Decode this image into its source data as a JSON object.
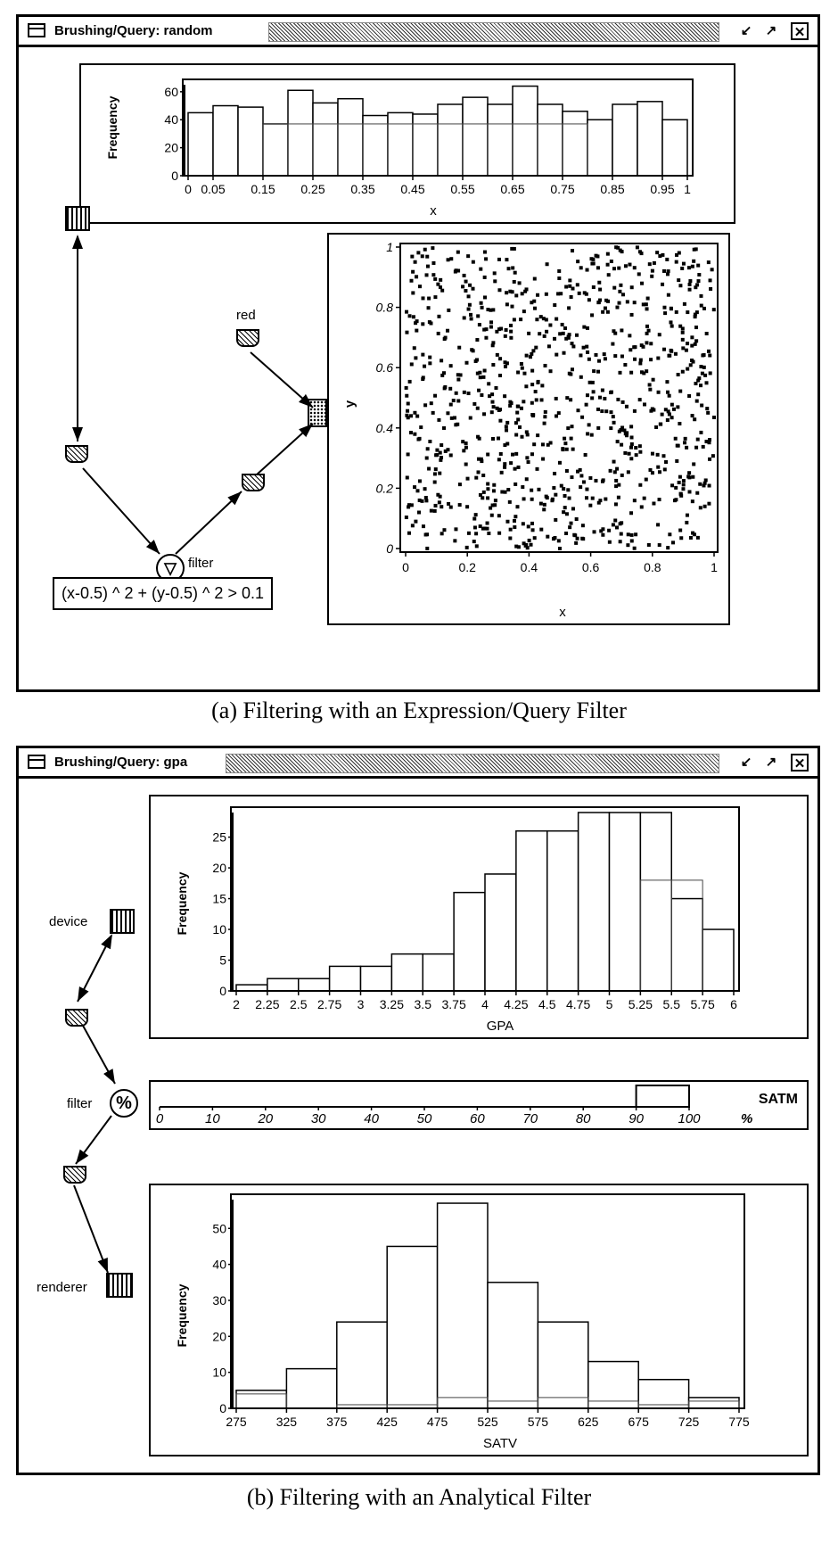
{
  "window_a": {
    "title": "Brushing/Query:  random",
    "controls": [
      "minimize-icon",
      "maximize-icon",
      "close-icon"
    ],
    "histogram": {
      "ylabel": "Frequency",
      "xlabel": "x",
      "yticks": [
        "0",
        "20",
        "40",
        "60"
      ],
      "xticks": [
        "0",
        "0.05",
        "0.15",
        "0.25",
        "0.35",
        "0.45",
        "0.55",
        "0.65",
        "0.75",
        "0.85",
        "0.95",
        "1"
      ]
    },
    "scatter": {
      "xlabel": "x",
      "ylabel": "y",
      "xticks": [
        "0",
        "0.2",
        "0.4",
        "0.6",
        "0.8",
        "1"
      ],
      "yticks": [
        "0",
        "0.2",
        "0.4",
        "0.6",
        "0.8",
        "1"
      ]
    },
    "nodes": {
      "red_label": "red",
      "filter_label": "filter"
    },
    "expression": "(x-0.5) ^ 2 + (y-0.5) ^ 2 > 0.1"
  },
  "caption_a": "(a) Filtering with an Expression/Query Filter",
  "window_b": {
    "title": "Brushing/Query:  gpa",
    "controls": [
      "minimize-icon",
      "maximize-icon",
      "close-icon"
    ],
    "gpa_histogram": {
      "ylabel": "Frequency",
      "xlabel": "GPA",
      "yticks": [
        "0",
        "5",
        "10",
        "15",
        "20",
        "25"
      ],
      "xticks": [
        "2",
        "2.25",
        "2.5",
        "2.75",
        "3",
        "3.25",
        "3.5",
        "3.75",
        "4",
        "4.25",
        "4.5",
        "4.75",
        "5",
        "5.25",
        "5.5",
        "5.75",
        "6"
      ]
    },
    "percent_filter": {
      "label": "SATM",
      "ticks": [
        "0",
        "10",
        "20",
        "30",
        "40",
        "50",
        "60",
        "70",
        "80",
        "90",
        "100"
      ],
      "unit": "%",
      "range": [
        90,
        100
      ]
    },
    "satv_histogram": {
      "ylabel": "Frequency",
      "xlabel": "SATV",
      "yticks": [
        "0",
        "10",
        "20",
        "30",
        "40",
        "50"
      ],
      "xticks": [
        "275",
        "325",
        "375",
        "425",
        "475",
        "525",
        "575",
        "625",
        "675",
        "725",
        "775"
      ]
    },
    "nodes": {
      "device_label": "device",
      "filter_label": "filter",
      "renderer_label": "renderer"
    }
  },
  "caption_b": "(b) Filtering with an Analytical Filter",
  "chart_data": [
    {
      "type": "bar",
      "xlabel": "x",
      "ylabel": "Frequency",
      "ylim": [
        0,
        65
      ],
      "bin_edges": [
        0,
        0.05,
        0.1,
        0.15,
        0.2,
        0.25,
        0.3,
        0.35,
        0.4,
        0.45,
        0.5,
        0.55,
        0.6,
        0.65,
        0.7,
        0.75,
        0.8,
        0.85,
        0.9,
        0.95,
        1
      ],
      "values": [
        45,
        50,
        49,
        37,
        61,
        52,
        55,
        43,
        45,
        44,
        51,
        56,
        51,
        64,
        51,
        46,
        40,
        51,
        53,
        40
      ],
      "selected_values": [
        0,
        0,
        0,
        37,
        37,
        37,
        37,
        37,
        37,
        37,
        37,
        37,
        37,
        37,
        37,
        37,
        0,
        0,
        0,
        0
      ]
    },
    {
      "type": "scatter",
      "xlabel": "x",
      "ylabel": "y",
      "xlim": [
        0,
        1
      ],
      "ylim": [
        0,
        1
      ],
      "note_points": "uniform random points"
    },
    {
      "type": "bar",
      "xlabel": "GPA",
      "ylabel": "Frequency",
      "ylim": [
        0,
        29
      ],
      "bin_edges": [
        2,
        2.25,
        2.5,
        2.75,
        3,
        3.25,
        3.5,
        3.75,
        4,
        4.25,
        4.5,
        4.75,
        5,
        5.25,
        5.5,
        5.75,
        6
      ],
      "values": [
        1,
        2,
        2,
        4,
        4,
        6,
        6,
        16,
        19,
        26,
        26,
        29,
        29,
        29,
        15,
        10
      ],
      "selected_values": [
        0,
        0,
        0,
        0,
        0,
        0,
        0,
        0,
        0,
        0,
        0,
        0,
        0,
        18,
        18,
        0
      ]
    },
    {
      "type": "bar",
      "xlabel": "SATV",
      "ylabel": "Frequency",
      "ylim": [
        0,
        58
      ],
      "bin_edges": [
        275,
        325,
        375,
        425,
        475,
        525,
        575,
        625,
        675,
        725,
        775
      ],
      "values": [
        5,
        11,
        24,
        45,
        57,
        35,
        24,
        13,
        8,
        3
      ],
      "selected_values": [
        4,
        0,
        1,
        1,
        3,
        2,
        3,
        2,
        1,
        2
      ]
    }
  ]
}
